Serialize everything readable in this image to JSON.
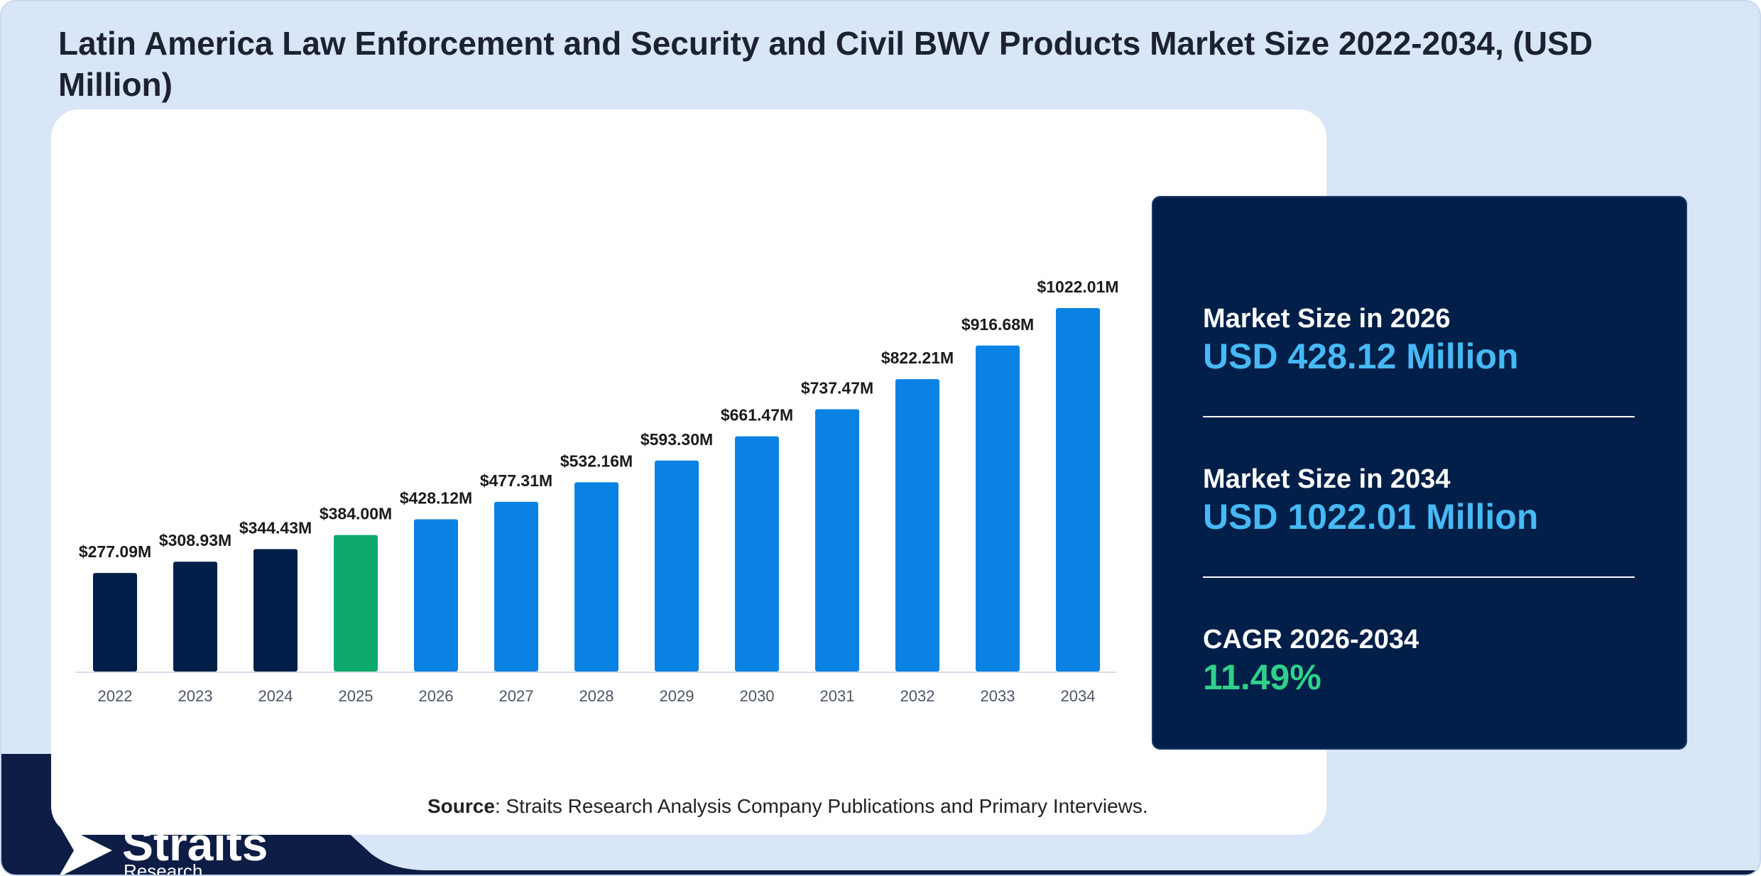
{
  "title": "Latin America Law Enforcement and Security and Civil BWV Products Market Size 2022-2034, (USD Million)",
  "colors": {
    "historical": "#011f48",
    "base_year": "#0fa96c",
    "forecast": "#0a82e4",
    "panel_bg": "#011f48",
    "accent_blue": "#47b9f5",
    "accent_green": "#2fd18a"
  },
  "chart_data": {
    "type": "bar",
    "categories": [
      "2022",
      "2023",
      "2024",
      "2025",
      "2026",
      "2027",
      "2028",
      "2029",
      "2030",
      "2031",
      "2032",
      "2033",
      "2034"
    ],
    "values": [
      277.09,
      308.93,
      344.43,
      384.0,
      428.12,
      477.31,
      532.16,
      593.3,
      661.47,
      737.47,
      822.21,
      916.68,
      1022.01
    ],
    "data_labels": [
      "$277.09M",
      "$308.93M",
      "$344.43M",
      "$384.00M",
      "$428.12M",
      "$477.31M",
      "$532.16M",
      "$593.30M",
      "$661.47M",
      "$737.47M",
      "$822.21M",
      "$916.68M",
      "$1022.01M"
    ],
    "bar_groups": [
      "historical",
      "historical",
      "historical",
      "base_year",
      "forecast",
      "forecast",
      "forecast",
      "forecast",
      "forecast",
      "forecast",
      "forecast",
      "forecast",
      "forecast"
    ],
    "unit": "USD Million",
    "grid": false
  },
  "info_panel": {
    "items": [
      {
        "label": "Market Size in 2026",
        "value": "USD 428.12 Million"
      },
      {
        "label": "Market Size in 2034",
        "value": "USD 1022.01 Million"
      },
      {
        "label": "CAGR 2026-2034",
        "value": "11.49%"
      }
    ]
  },
  "source": {
    "bold": "Source",
    "text": ": Straits Research Analysis Company Publications and Primary Interviews."
  },
  "logo": {
    "name": "Straits",
    "sub": "Research"
  }
}
